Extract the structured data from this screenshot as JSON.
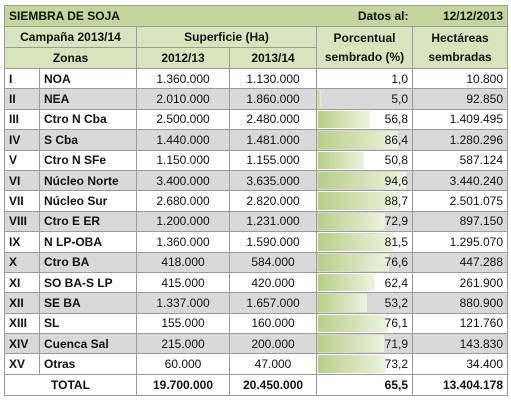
{
  "header": {
    "title": "SIEMBRA DE SOJA",
    "date_label": "Datos al:",
    "date_value": "12/12/2013",
    "campaign": "Campaña 2013/14",
    "superficie": "Superficie (Ha)",
    "porcentual_line1": "Porcentual",
    "porcentual_line2": "sembrado (%)",
    "hectareas_line1": "Hectáreas",
    "hectareas_line2": "sembradas",
    "zonas": "Zonas",
    "year1": "2012/13",
    "year2": "2013/14"
  },
  "rows": [
    {
      "num": "I",
      "zona": "NOA",
      "s2012": "1.360.000",
      "s2013": "1.130.000",
      "pct": "1,0",
      "pct_value": 1.0,
      "ha": "10.800"
    },
    {
      "num": "II",
      "zona": "NEA",
      "s2012": "2.010.000",
      "s2013": "1.860.000",
      "pct": "5,0",
      "pct_value": 5.0,
      "ha": "92.850"
    },
    {
      "num": "III",
      "zona": "Ctro N Cba",
      "s2012": "2.500.000",
      "s2013": "2.480.000",
      "pct": "56,8",
      "pct_value": 56.8,
      "ha": "1.409.495"
    },
    {
      "num": "IV",
      "zona": "S Cba",
      "s2012": "1.440.000",
      "s2013": "1.481.000",
      "pct": "86,4",
      "pct_value": 86.4,
      "ha": "1.280.296"
    },
    {
      "num": "V",
      "zona": "Ctro N SFe",
      "s2012": "1.150.000",
      "s2013": "1.155.000",
      "pct": "50,8",
      "pct_value": 50.8,
      "ha": "587.124"
    },
    {
      "num": "VI",
      "zona": "Núcleo Norte",
      "s2012": "3.400.000",
      "s2013": "3.635.000",
      "pct": "94,6",
      "pct_value": 94.6,
      "ha": "3.440.240"
    },
    {
      "num": "VII",
      "zona": "Núcleo Sur",
      "s2012": "2.680.000",
      "s2013": "2.820.000",
      "pct": "88,7",
      "pct_value": 88.7,
      "ha": "2.501.075"
    },
    {
      "num": "VIII",
      "zona": "Ctro E ER",
      "s2012": "1.200.000",
      "s2013": "1.231.000",
      "pct": "72,9",
      "pct_value": 72.9,
      "ha": "897.150"
    },
    {
      "num": "IX",
      "zona": "N LP-OBA",
      "s2012": "1.360.000",
      "s2013": "1.590.000",
      "pct": "81,5",
      "pct_value": 81.5,
      "ha": "1.295.070"
    },
    {
      "num": "X",
      "zona": "Ctro BA",
      "s2012": "418.000",
      "s2013": "584.000",
      "pct": "76,6",
      "pct_value": 76.6,
      "ha": "447.288"
    },
    {
      "num": "XI",
      "zona": "SO BA-S LP",
      "s2012": "415.000",
      "s2013": "420.000",
      "pct": "62,4",
      "pct_value": 62.4,
      "ha": "261.900"
    },
    {
      "num": "XII",
      "zona": "SE BA",
      "s2012": "1.337.000",
      "s2013": "1.657.000",
      "pct": "53,2",
      "pct_value": 53.2,
      "ha": "880.900"
    },
    {
      "num": "XIII",
      "zona": "SL",
      "s2012": "155.000",
      "s2013": "160.000",
      "pct": "76,1",
      "pct_value": 76.1,
      "ha": "121.760"
    },
    {
      "num": "XIV",
      "zona": "Cuenca Sal",
      "s2012": "215.000",
      "s2013": "200.000",
      "pct": "71,9",
      "pct_value": 71.9,
      "ha": "143.830"
    },
    {
      "num": "XV",
      "zona": "Otras",
      "s2012": "60.000",
      "s2013": "47.000",
      "pct": "73,2",
      "pct_value": 73.2,
      "ha": "34.400"
    }
  ],
  "total": {
    "label": "TOTAL",
    "s2012": "19.700.000",
    "s2013": "20.450.000",
    "pct": "65,5",
    "ha": "13.404.178"
  },
  "colors": {
    "header_bg": "#c3d69b",
    "subheader_bg": "#d8e4bc",
    "bar_start": "#b6cf88",
    "bar_end": "#edf3df"
  }
}
